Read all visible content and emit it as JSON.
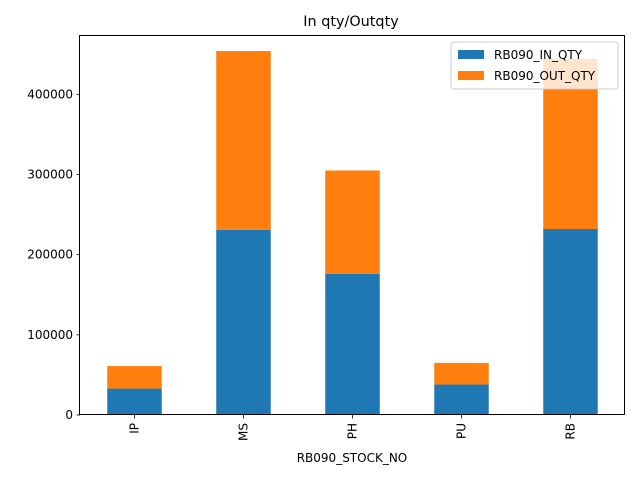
{
  "chart_data": {
    "type": "bar",
    "stacked": true,
    "title": "In qty/Outqty",
    "xlabel": "RB090_STOCK_NO",
    "ylabel": "",
    "categories": [
      "IP",
      "MS",
      "PH",
      "PU",
      "RB"
    ],
    "series": [
      {
        "name": "RB090_IN_QTY",
        "color": "#1f77b4",
        "values": [
          33000,
          231000,
          176000,
          38000,
          232000
        ]
      },
      {
        "name": "RB090_OUT_QTY",
        "color": "#ff7f0e",
        "values": [
          28000,
          223000,
          129000,
          27000,
          212000
        ]
      }
    ],
    "ylim": [
      0,
      474000
    ],
    "yticks": [
      0,
      100000,
      200000,
      300000,
      400000
    ],
    "ytick_labels": [
      "0",
      "100000",
      "200000",
      "300000",
      "400000"
    ],
    "legend": "top-right",
    "grid": false
  }
}
